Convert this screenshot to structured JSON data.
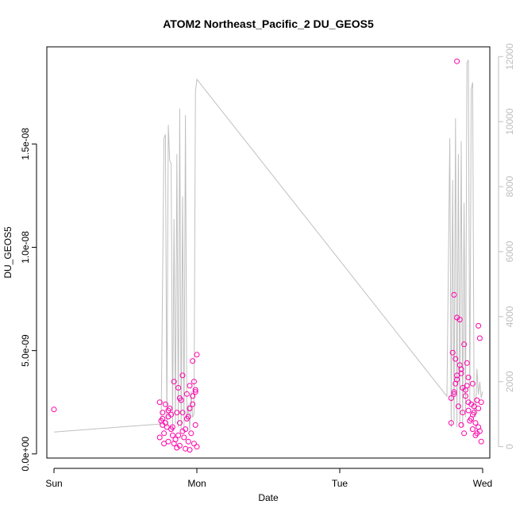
{
  "chart_data": {
    "type": "scatter",
    "title": "ATOM2 Northeast_Pacific_2 DU_GEOS5",
    "xlabel": "Date",
    "ylabel": "DU_GEOS5",
    "x_ticks": [
      "Sun",
      "Mon",
      "Tue",
      "Wed"
    ],
    "x_unit": "days after Sun 00:00",
    "xlim": [
      -0.05,
      3.05
    ],
    "ylim": [
      -2e-10,
      1.97e-08
    ],
    "y_ticks": [
      "0.0e+00",
      "5.0e-09",
      "1.0e-08",
      "1.5e-08"
    ],
    "y_tick_values": [
      0,
      5e-09,
      1e-08,
      1.5e-08
    ],
    "y2_ticks": [
      "0",
      "2000",
      "4000",
      "6000",
      "8000",
      "10000",
      "12000"
    ],
    "y2_tick_values": [
      0,
      2000,
      4000,
      6000,
      8000,
      10000,
      12000
    ],
    "y2lim": [
      -350,
      12300
    ],
    "grid": false,
    "legend": "none",
    "colors": {
      "points": "#ff00aa",
      "altitude_line": "#c0c0c0",
      "axis": "#000000",
      "right_axis": "#bebebe"
    },
    "series": [
      {
        "type": "scatter",
        "axis": "left",
        "x": [
          0.0,
          0.74,
          0.75,
          0.76,
          0.76,
          0.77,
          0.78,
          0.78,
          0.79,
          0.8,
          0.8,
          0.81,
          0.82,
          0.83,
          0.84,
          0.84,
          0.85,
          0.86,
          0.86,
          0.87,
          0.88,
          0.88,
          0.89,
          0.9,
          0.9,
          0.91,
          0.92,
          0.93,
          0.93,
          0.94,
          0.95,
          0.95,
          0.96,
          0.97,
          0.97,
          0.98,
          0.99,
          0.99,
          1.0,
          1.0,
          0.74,
          0.76,
          0.8,
          0.82,
          0.87,
          0.9,
          0.92,
          0.95,
          0.97,
          0.99,
          0.77,
          0.83,
          0.88,
          0.94,
          0.98,
          2.78,
          2.79,
          2.8,
          2.8,
          2.81,
          2.82,
          2.82,
          2.83,
          2.84,
          2.85,
          2.85,
          2.86,
          2.87,
          2.87,
          2.88,
          2.89,
          2.9,
          2.9,
          2.91,
          2.92,
          2.93,
          2.93,
          2.94,
          2.95,
          2.95,
          2.96,
          2.97,
          2.97,
          2.98,
          2.99,
          2.99,
          2.78,
          2.8,
          2.82,
          2.84,
          2.86,
          2.88,
          2.9,
          2.92,
          2.94,
          2.96,
          2.98,
          2.81,
          2.85,
          2.89,
          2.93,
          2.97,
          2.82
        ],
        "y": [
          2.15e-09,
          2.5e-09,
          1.6e-09,
          1.4e-09,
          2e-09,
          1e-09,
          1.5e-09,
          2.4e-09,
          1.3e-09,
          2.1e-09,
          1.8e-09,
          2.2e-09,
          1.2e-09,
          9e-10,
          5e-10,
          3.5e-09,
          7e-10,
          2e-09,
          3e-10,
          3.2e-09,
          1.5e-09,
          4e-10,
          2.6e-09,
          3.8e-09,
          1.1e-09,
          8e-10,
          2.5e-10,
          2.9e-09,
          1.7e-09,
          6e-10,
          3.3e-09,
          2.2e-09,
          1e-09,
          4.5e-09,
          2.8e-09,
          5e-10,
          3.1e-09,
          1.4e-09,
          3.5e-10,
          4.8e-09,
          8e-10,
          1.7e-09,
          6e-10,
          1.9e-09,
          9e-10,
          2e-09,
          1.2e-09,
          2e-10,
          2.4e-09,
          3e-09,
          5e-10,
          1.3e-09,
          2.7e-09,
          1.8e-09,
          3.5e-09,
          2.7e-09,
          4.9e-09,
          3e-09,
          7.7e-09,
          3.4e-09,
          6.6e-09,
          3.8e-09,
          2.3e-09,
          6.5e-09,
          1.4e-09,
          4.1e-09,
          3.2e-09,
          5.3e-09,
          1e-09,
          2.8e-09,
          4.4e-09,
          2.1e-09,
          3.7e-09,
          1.6e-09,
          2.4e-09,
          1.2e-09,
          3.4e-09,
          2e-09,
          9e-10,
          1.5e-09,
          2.6e-09,
          1.3e-09,
          2.2e-09,
          1.1e-09,
          2.5e-09,
          6e-10,
          1.5e-09,
          2.9e-09,
          3.6e-09,
          4.3e-09,
          2e-09,
          3.1e-09,
          2.5e-09,
          1.7e-09,
          2.3e-09,
          1e-09,
          5.6e-09,
          4.6e-09,
          3.9e-09,
          3.3e-09,
          1.9e-09,
          6.2e-09,
          1.9e-08
        ]
      },
      {
        "type": "line",
        "axis": "right",
        "name": "",
        "x": [
          0.0,
          0.75,
          0.77,
          0.78,
          0.79,
          0.8,
          0.81,
          0.82,
          0.83,
          0.84,
          0.85,
          0.86,
          0.87,
          0.88,
          0.89,
          0.9,
          0.91,
          0.92,
          0.93,
          0.94,
          0.95,
          0.96,
          0.97,
          0.98,
          0.99,
          1.0,
          2.75,
          2.77,
          2.78,
          2.79,
          2.8,
          2.81,
          2.82,
          2.83,
          2.84,
          2.85,
          2.86,
          2.87,
          2.88,
          2.89,
          2.9,
          2.91,
          2.92,
          2.93,
          2.94,
          2.95,
          2.96,
          2.97,
          2.98,
          2.99,
          3.0
        ],
        "y": [
          450,
          700,
          9500,
          9600,
          600,
          9900,
          8800,
          8700,
          500,
          7000,
          700,
          9000,
          600,
          10400,
          500,
          7700,
          600,
          10200,
          800,
          1300,
          500,
          1700,
          900,
          1000,
          10900,
          11300,
          1550,
          9500,
          600,
          8200,
          800,
          10100,
          600,
          9000,
          700,
          9400,
          600,
          7500,
          900,
          11800,
          11900,
          1300,
          11000,
          11200,
          1200,
          900,
          2400,
          1600,
          2000,
          1500,
          1700
        ]
      }
    ]
  }
}
